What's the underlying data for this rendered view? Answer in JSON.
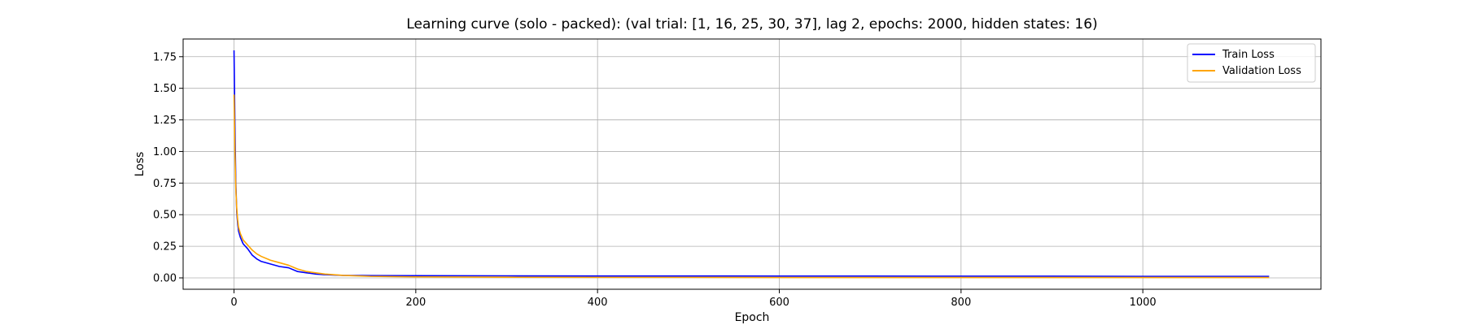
{
  "chart_data": {
    "type": "line",
    "title": "Learning curve (solo - packed): (val trial: [1, 16, 25, 30, 37], lag 2, epochs: 2000, hidden states: 16)",
    "xlabel": "Epoch",
    "ylabel": "Loss",
    "xlim": [
      -56,
      1196
    ],
    "ylim": [
      -0.09,
      1.89
    ],
    "xticks": [
      0,
      200,
      400,
      600,
      800,
      1000
    ],
    "yticks": [
      0.0,
      0.25,
      0.5,
      0.75,
      1.0,
      1.25,
      1.5,
      1.75
    ],
    "grid": true,
    "legend_position": "top-right",
    "series": [
      {
        "name": "Train Loss",
        "color": "#0000ff",
        "x": [
          0,
          1,
          2,
          3,
          4,
          5,
          7,
          10,
          15,
          20,
          25,
          30,
          40,
          50,
          60,
          70,
          80,
          90,
          100,
          120,
          150,
          200,
          300,
          400,
          500,
          600,
          700,
          800,
          900,
          1000,
          1100,
          1139
        ],
        "y": [
          1.8,
          1.2,
          0.75,
          0.52,
          0.43,
          0.37,
          0.32,
          0.27,
          0.23,
          0.18,
          0.15,
          0.13,
          0.11,
          0.09,
          0.08,
          0.05,
          0.04,
          0.03,
          0.025,
          0.02,
          0.018,
          0.017,
          0.016,
          0.015,
          0.015,
          0.014,
          0.014,
          0.013,
          0.013,
          0.012,
          0.012,
          0.012
        ]
      },
      {
        "name": "Validation Loss",
        "color": "#ffa500",
        "x": [
          0,
          1,
          2,
          3,
          4,
          5,
          7,
          10,
          15,
          20,
          25,
          30,
          40,
          50,
          60,
          70,
          80,
          90,
          100,
          120,
          150,
          200,
          300,
          400,
          500,
          600,
          700,
          800,
          900,
          1000,
          1100,
          1139
        ],
        "y": [
          1.45,
          1.0,
          0.7,
          0.55,
          0.46,
          0.4,
          0.35,
          0.3,
          0.26,
          0.22,
          0.19,
          0.17,
          0.14,
          0.12,
          0.1,
          0.07,
          0.05,
          0.04,
          0.03,
          0.02,
          0.012,
          0.008,
          0.005,
          0.004,
          0.004,
          0.003,
          0.003,
          0.003,
          0.003,
          0.003,
          0.003,
          0.003
        ]
      }
    ]
  }
}
